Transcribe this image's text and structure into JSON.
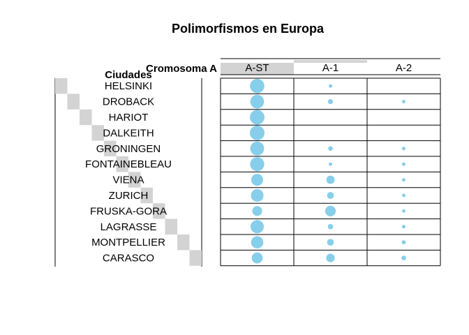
{
  "chart_data": {
    "type": "table",
    "title": "Polimorfismos en Europa",
    "row_header": "Ciudades",
    "column_header": "Cromosoma A",
    "columns": [
      "A-ST",
      "A-1",
      "A-2"
    ],
    "rows": [
      "HELSINKI",
      "DROBACK",
      "HARIOT",
      "DALKEITH",
      "GRONINGEN",
      "FONTAINEBLEAU",
      "VIENA",
      "ZURICH",
      "FRUSKA-GORA",
      "LAGRASSE",
      "MONTPELLIER",
      "CARASCO"
    ],
    "values": [
      [
        0.96,
        0.04,
        0.0
      ],
      [
        0.88,
        0.12,
        0.02
      ],
      [
        1.0,
        0.0,
        0.0
      ],
      [
        1.0,
        0.0,
        0.0
      ],
      [
        0.9,
        0.1,
        0.01
      ],
      [
        0.93,
        0.05,
        0.02
      ],
      [
        0.66,
        0.32,
        0.02
      ],
      [
        0.74,
        0.22,
        0.04
      ],
      [
        0.45,
        0.52,
        0.03
      ],
      [
        0.82,
        0.13,
        0.05
      ],
      [
        0.7,
        0.21,
        0.08
      ],
      [
        0.56,
        0.34,
        0.1
      ]
    ],
    "value_max": 1.0,
    "point_color": "#87CEEB",
    "band_color": "#D3D3D3"
  }
}
